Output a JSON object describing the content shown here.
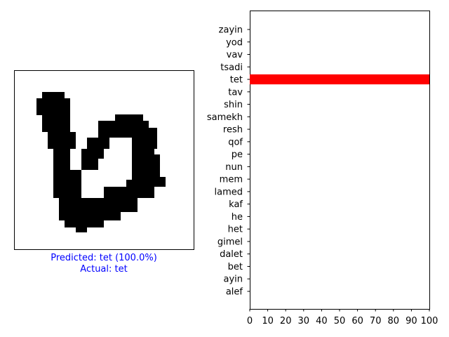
{
  "image_panel": {
    "predicted_text": "Predicted: tet (100.0%)",
    "actual_text": "Actual: tet",
    "predicted_color": "#0000ff",
    "glyph_description": "handwritten Hebrew letter (28x28 style bitmap, black on white)"
  },
  "chart_data": {
    "type": "bar",
    "orientation": "horizontal",
    "categories": [
      "alef",
      "ayin",
      "bet",
      "dalet",
      "gimel",
      "het",
      "he",
      "kaf",
      "lamed",
      "mem",
      "nun",
      "pe",
      "qof",
      "resh",
      "samekh",
      "shin",
      "tav",
      "tet",
      "tsadi",
      "vav",
      "yod",
      "zayin"
    ],
    "values": [
      0,
      0,
      0,
      0,
      0,
      0,
      0,
      0,
      0,
      0,
      0,
      0,
      0,
      0,
      0,
      0,
      0,
      100,
      0,
      0,
      0,
      0
    ],
    "highlight_category": "tet",
    "highlight_color": "#ff0000",
    "xlim": [
      0,
      100
    ],
    "xticks": [
      0,
      10,
      20,
      30,
      40,
      50,
      60,
      70,
      80,
      90,
      100
    ],
    "title": "",
    "xlabel": "",
    "ylabel": "",
    "grid": false,
    "legend": false
  }
}
